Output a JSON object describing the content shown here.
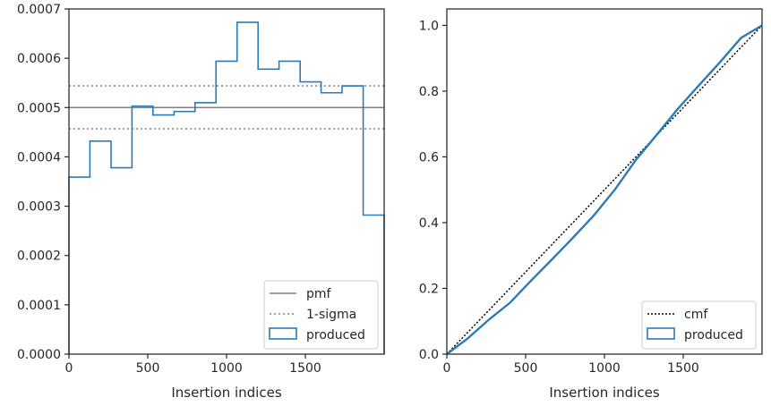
{
  "colors": {
    "produced": "#2b7bb9",
    "pmf": "#808080",
    "sigma": "#808080",
    "cmf": "#000000",
    "axes": "#262626",
    "legend_border": "#cccccc"
  },
  "chart_data": [
    {
      "type": "histogram",
      "xlabel": "Insertion indices",
      "ylabel": "",
      "xlim": [
        0,
        2000
      ],
      "ylim": [
        0,
        0.0007
      ],
      "xticks": [
        0,
        500,
        1000,
        1500
      ],
      "xtick_labels": [
        "0",
        "500",
        "1000",
        "1500"
      ],
      "yticks": [
        0,
        0.0001,
        0.0002,
        0.0003,
        0.0004,
        0.0005,
        0.0006,
        0.0007
      ],
      "ytick_labels": [
        "0.0000",
        "0.0001",
        "0.0002",
        "0.0003",
        "0.0004",
        "0.0005",
        "0.0006",
        "0.0007"
      ],
      "bin_edges": [
        0,
        133,
        267,
        400,
        533,
        667,
        800,
        933,
        1067,
        1200,
        1333,
        1467,
        1600,
        1733,
        1867,
        2000
      ],
      "values": [
        0.000359,
        0.000432,
        0.000378,
        0.000503,
        0.000485,
        0.000492,
        0.00051,
        0.000594,
        0.000673,
        0.000578,
        0.000594,
        0.000552,
        0.00053,
        0.000544,
        0.000282
      ],
      "pmf": 0.0005,
      "sigma_upper": 0.000544,
      "sigma_lower": 0.000457,
      "legend_position": "lower right",
      "legend": [
        "pmf",
        "1-sigma",
        "produced"
      ],
      "grid": false
    },
    {
      "type": "line",
      "xlabel": "Insertion indices",
      "ylabel": "",
      "xlim": [
        0,
        2000
      ],
      "ylim": [
        0,
        1.05
      ],
      "xticks": [
        0,
        500,
        1000,
        1500
      ],
      "xtick_labels": [
        "0",
        "500",
        "1000",
        "1500"
      ],
      "yticks": [
        0,
        0.2,
        0.4,
        0.6,
        0.8,
        1.0
      ],
      "ytick_labels": [
        "0.0",
        "0.2",
        "0.4",
        "0.6",
        "0.8",
        "1.0"
      ],
      "produced": {
        "x": [
          0,
          133,
          267,
          400,
          533,
          667,
          800,
          933,
          1067,
          1200,
          1333,
          1467,
          1600,
          1733,
          1867,
          2000
        ],
        "y": [
          0,
          0.048,
          0.105,
          0.156,
          0.223,
          0.288,
          0.354,
          0.422,
          0.501,
          0.591,
          0.668,
          0.747,
          0.818,
          0.888,
          0.962,
          1.0
        ]
      },
      "cmf": {
        "x": [
          0,
          2000
        ],
        "y": [
          0,
          1.0
        ]
      },
      "legend_position": "lower right",
      "legend": [
        "cmf",
        "produced"
      ],
      "grid": false
    }
  ]
}
